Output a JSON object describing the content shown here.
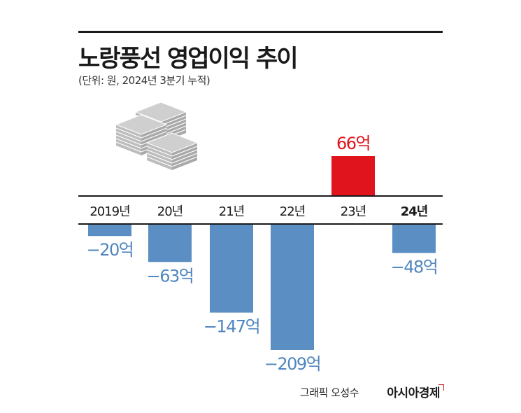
{
  "title": "노랑풍선 영업이익 추이",
  "subtitle": "(단위: 원, 2024년 3분기 누적)",
  "credit": {
    "graphic": "그래픽 오성수",
    "brand": "아시아경제"
  },
  "colors": {
    "negative": "#5b8fc4",
    "positive": "#e0141c",
    "negative_label": "#4f86bf",
    "positive_label": "#e0141c",
    "axis": "#1a1a1a",
    "illustration": "#b9b9b9"
  },
  "illustration": "stacked-money-icon",
  "chart_data": {
    "type": "bar",
    "categories": [
      "2019년",
      "20년",
      "21년",
      "22년",
      "23년",
      "24년"
    ],
    "values": [
      -20,
      -63,
      -147,
      -209,
      66,
      -48
    ],
    "data_labels": [
      "-20억",
      "-63억",
      "-147억",
      "-209억",
      "66억",
      "-48억"
    ],
    "unit": "억",
    "highlight_category": "24년",
    "baseline": 0,
    "grid": false,
    "legend": "none"
  }
}
